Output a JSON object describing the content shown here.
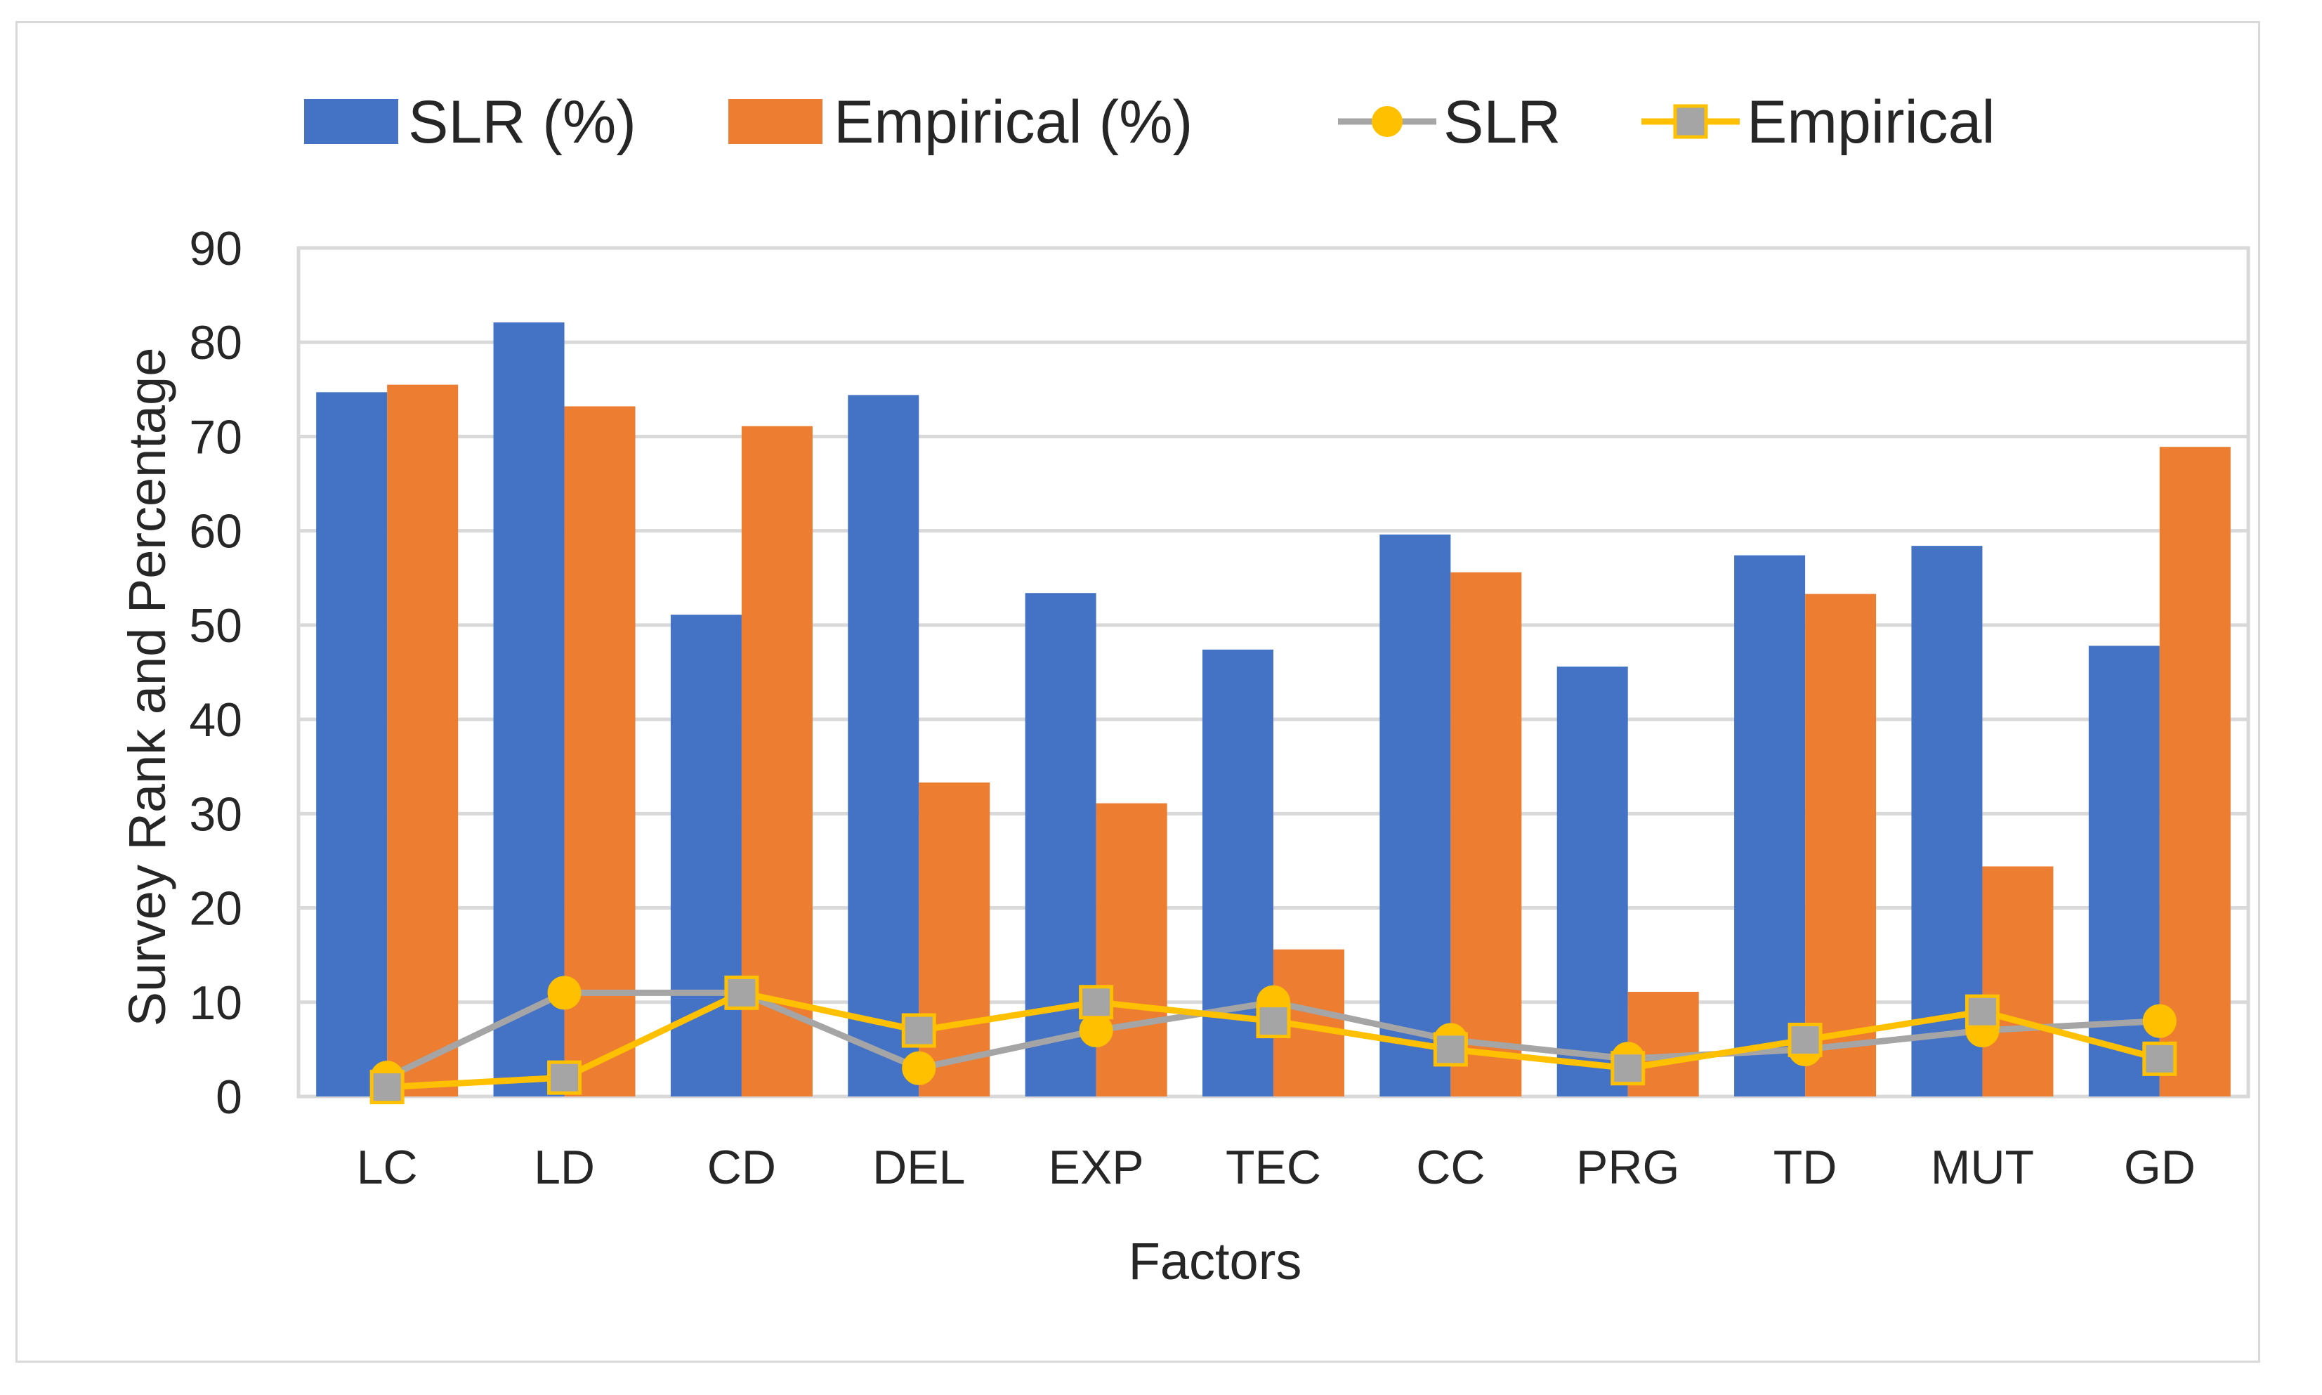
{
  "chart_data": {
    "type": "bar+line",
    "title": "",
    "xlabel": "Factors",
    "ylabel": "Survey Rank and Percentage",
    "ylim": [
      0,
      90
    ],
    "yticks": [
      0,
      10,
      20,
      30,
      40,
      50,
      60,
      70,
      80,
      90
    ],
    "grid": true,
    "legend_position": "top",
    "categories": [
      "LC",
      "LD",
      "CD",
      "DEL",
      "EXP",
      "TEC",
      "CC",
      "PRG",
      "TD",
      "MUT",
      "GD"
    ],
    "bar_series": [
      {
        "name": "SLR (%)",
        "color": "#4472c4",
        "values": [
          74.7,
          82.1,
          51.1,
          74.4,
          53.4,
          47.4,
          59.6,
          45.6,
          57.4,
          58.4,
          47.8
        ]
      },
      {
        "name": "Empirical (%)",
        "color": "#ed7d31",
        "values": [
          75.5,
          73.2,
          71.1,
          33.3,
          31.1,
          15.6,
          55.6,
          11.1,
          53.3,
          24.4,
          68.9
        ]
      }
    ],
    "line_series": [
      {
        "name": "SLR",
        "line_color": "#a5a5a5",
        "marker": "circle",
        "marker_color": "#ffc000",
        "values": [
          2,
          11,
          11,
          3,
          7,
          10,
          6,
          4,
          5,
          7,
          8
        ]
      },
      {
        "name": "Empirical",
        "line_color": "#ffc000",
        "marker": "square",
        "marker_color": "#a5a5a5",
        "values": [
          1,
          2,
          11,
          7,
          10,
          8,
          5,
          3,
          6,
          9,
          4
        ]
      }
    ]
  }
}
